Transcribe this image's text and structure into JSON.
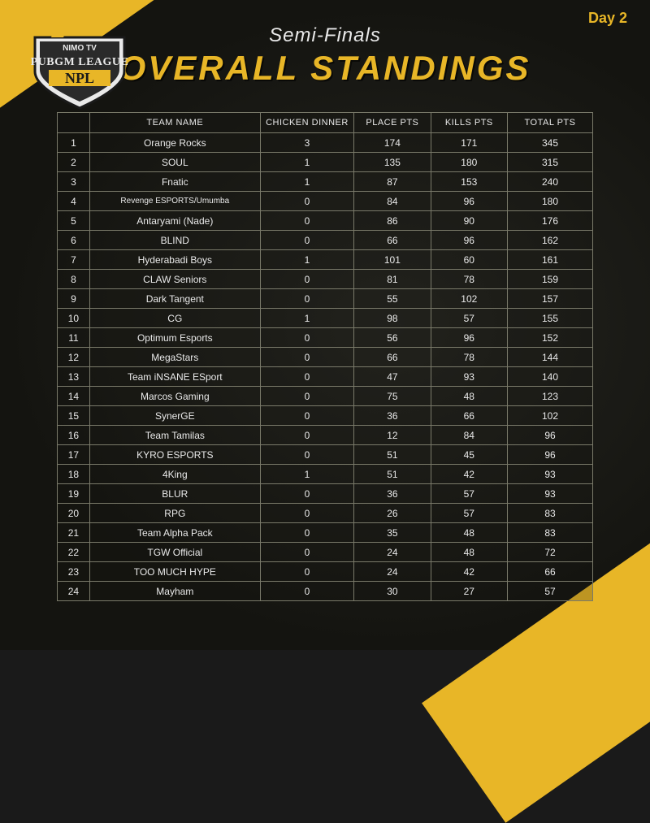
{
  "day_label": "Day 2",
  "logo": {
    "line1": "NIMO TV",
    "line2": "PUBGM LEAGUE",
    "line3": "NPL"
  },
  "header": {
    "subtitle": "Semi-Finals",
    "title": "OVERALL STANDINGS"
  },
  "colors": {
    "accent": "#e8b627",
    "text": "#e9e9e9",
    "border": "#7a7a6a",
    "bg_dark": "#1a1a1a"
  },
  "standings": {
    "columns": [
      "",
      "TEAM NAME",
      "CHICKEN DINNER",
      "PLACE PTS",
      "KILLS PTS",
      "TOTAL PTS"
    ],
    "rows": [
      {
        "rank": 1,
        "team": "Orange Rocks",
        "cd": 3,
        "pp": 174,
        "kp": 171,
        "tp": 345
      },
      {
        "rank": 2,
        "team": "SOUL",
        "cd": 1,
        "pp": 135,
        "kp": 180,
        "tp": 315
      },
      {
        "rank": 3,
        "team": "Fnatic",
        "cd": 1,
        "pp": 87,
        "kp": 153,
        "tp": 240
      },
      {
        "rank": 4,
        "team": "Revenge ESPORTS/Umumba",
        "cd": 0,
        "pp": 84,
        "kp": 96,
        "tp": 180,
        "small": true
      },
      {
        "rank": 5,
        "team": "Antaryami (Nade)",
        "cd": 0,
        "pp": 86,
        "kp": 90,
        "tp": 176
      },
      {
        "rank": 6,
        "team": "BLIND",
        "cd": 0,
        "pp": 66,
        "kp": 96,
        "tp": 162
      },
      {
        "rank": 7,
        "team": "Hyderabadi Boys",
        "cd": 1,
        "pp": 101,
        "kp": 60,
        "tp": 161
      },
      {
        "rank": 8,
        "team": "CLAW Seniors",
        "cd": 0,
        "pp": 81,
        "kp": 78,
        "tp": 159
      },
      {
        "rank": 9,
        "team": "Dark Tangent",
        "cd": 0,
        "pp": 55,
        "kp": 102,
        "tp": 157
      },
      {
        "rank": 10,
        "team": "CG",
        "cd": 1,
        "pp": 98,
        "kp": 57,
        "tp": 155
      },
      {
        "rank": 11,
        "team": "Optimum Esports",
        "cd": 0,
        "pp": 56,
        "kp": 96,
        "tp": 152
      },
      {
        "rank": 12,
        "team": "MegaStars",
        "cd": 0,
        "pp": 66,
        "kp": 78,
        "tp": 144
      },
      {
        "rank": 13,
        "team": "Team iNSANE ESport",
        "cd": 0,
        "pp": 47,
        "kp": 93,
        "tp": 140
      },
      {
        "rank": 14,
        "team": "Marcos Gaming",
        "cd": 0,
        "pp": 75,
        "kp": 48,
        "tp": 123
      },
      {
        "rank": 15,
        "team": "SynerGE",
        "cd": 0,
        "pp": 36,
        "kp": 66,
        "tp": 102
      },
      {
        "rank": 16,
        "team": "Team Tamilas",
        "cd": 0,
        "pp": 12,
        "kp": 84,
        "tp": 96
      },
      {
        "rank": 17,
        "team": "KYRO ESPORTS",
        "cd": 0,
        "pp": 51,
        "kp": 45,
        "tp": 96
      },
      {
        "rank": 18,
        "team": "4King",
        "cd": 1,
        "pp": 51,
        "kp": 42,
        "tp": 93
      },
      {
        "rank": 19,
        "team": "BLUR",
        "cd": 0,
        "pp": 36,
        "kp": 57,
        "tp": 93
      },
      {
        "rank": 20,
        "team": "RPG",
        "cd": 0,
        "pp": 26,
        "kp": 57,
        "tp": 83
      },
      {
        "rank": 21,
        "team": "Team Alpha Pack",
        "cd": 0,
        "pp": 35,
        "kp": 48,
        "tp": 83
      },
      {
        "rank": 22,
        "team": "TGW Official",
        "cd": 0,
        "pp": 24,
        "kp": 48,
        "tp": 72
      },
      {
        "rank": 23,
        "team": "TOO MUCH HYPE",
        "cd": 0,
        "pp": 24,
        "kp": 42,
        "tp": 66
      },
      {
        "rank": 24,
        "team": "Mayham",
        "cd": 0,
        "pp": 30,
        "kp": 27,
        "tp": 57
      }
    ]
  }
}
